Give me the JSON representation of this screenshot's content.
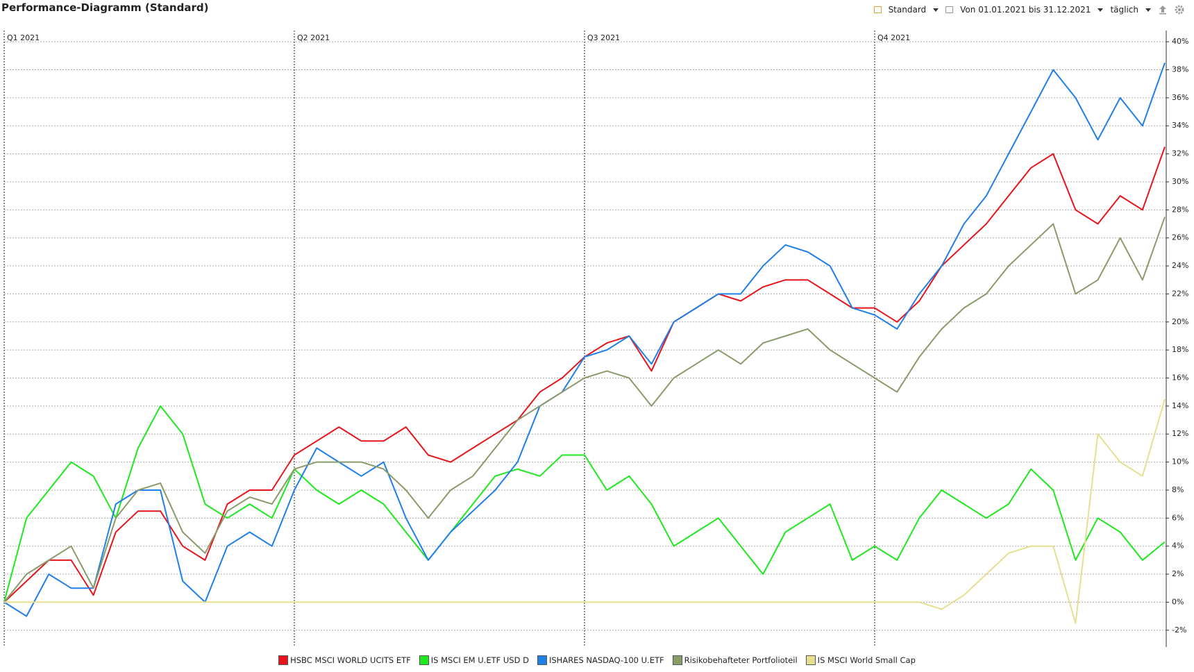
{
  "toolbar": {
    "title": "Performance-Diagramm (Standard)",
    "view": "Standard",
    "period": "Von 01.01.2021 bis 31.12.2021",
    "interval": "täglich"
  },
  "chart_data": {
    "type": "line",
    "categories": [
      "Q1 2021",
      null,
      null,
      null,
      null,
      null,
      null,
      null,
      null,
      null,
      null,
      null,
      null,
      "Q2 2021",
      null,
      null,
      null,
      null,
      null,
      null,
      null,
      null,
      null,
      null,
      null,
      null,
      "Q3 2021",
      null,
      null,
      null,
      null,
      null,
      null,
      null,
      null,
      null,
      null,
      null,
      null,
      "Q4 2021",
      null,
      null,
      null,
      null,
      null,
      null,
      null,
      null,
      null,
      null,
      null,
      null,
      null
    ],
    "series": [
      {
        "name": "HSBC MSCI WORLD UCITS ETF",
        "color": "#e8141c",
        "values": [
          0,
          1.5,
          3,
          3,
          0.5,
          5,
          6.5,
          6.5,
          4,
          3,
          7,
          8,
          8,
          10.5,
          11.5,
          12.5,
          11.5,
          11.5,
          12.5,
          10.5,
          10,
          11,
          12,
          13,
          15,
          16,
          17.5,
          18.5,
          19,
          16.5,
          20,
          21,
          22,
          21.5,
          22.5,
          23,
          23,
          22,
          21,
          21,
          20,
          21.5,
          24,
          25.5,
          27,
          29,
          31,
          32,
          28,
          27,
          29,
          28,
          32.5
        ]
      },
      {
        "name": "IS MSCI EM U.ETF USD D",
        "color": "#1ee81e",
        "values": [
          0,
          6,
          8,
          10,
          9,
          6,
          11,
          14,
          12,
          7,
          6,
          7,
          6,
          9.5,
          8,
          7,
          8,
          7,
          5,
          3,
          5,
          7,
          9,
          9.5,
          9,
          10.5,
          10.5,
          8,
          9,
          7,
          4,
          5,
          6,
          4,
          2,
          5,
          6,
          7,
          3,
          4,
          3,
          6,
          8,
          7,
          6,
          7,
          9.5,
          8,
          3,
          6,
          5,
          3,
          4.3
        ]
      },
      {
        "name": "ISHARES NASDAQ-100 U.ETF",
        "color": "#1f7fe8",
        "values": [
          0,
          -1,
          2,
          1,
          1,
          7,
          8,
          8,
          1.5,
          0,
          4,
          5,
          4,
          8,
          11,
          10,
          9,
          10,
          6,
          3,
          5,
          6.5,
          8,
          10,
          14,
          15,
          17.5,
          18,
          19,
          17,
          20,
          21,
          22,
          22,
          24,
          25.5,
          25,
          24,
          21,
          20.5,
          19.5,
          22,
          24,
          27,
          29,
          32,
          35,
          38,
          36,
          33,
          36,
          34,
          38.5
        ]
      },
      {
        "name": "Risikobehafteter Portfolioteil",
        "color": "#8a9a6a",
        "values": [
          0,
          2,
          3,
          4,
          1,
          6,
          8,
          8.5,
          5,
          3.5,
          6.5,
          7.5,
          7,
          9.5,
          10,
          10,
          10,
          9.5,
          8,
          6,
          8,
          9,
          11,
          13,
          14,
          15,
          16,
          16.5,
          16,
          14,
          16,
          17,
          18,
          17,
          18.5,
          19,
          19.5,
          18,
          17,
          16,
          15,
          17.5,
          19.5,
          21,
          22,
          24,
          25.5,
          27,
          22,
          23,
          26,
          23,
          27.5
        ]
      },
      {
        "name": "IS MSCI World Small Cap",
        "color": "#e6df8f",
        "values": [
          0,
          0,
          0,
          0,
          0,
          0,
          0,
          0,
          0,
          0,
          0,
          0,
          0,
          0,
          0,
          0,
          0,
          0,
          0,
          0,
          0,
          0,
          0,
          0,
          0,
          0,
          0,
          0,
          0,
          0,
          0,
          0,
          0,
          0,
          0,
          0,
          0,
          0,
          0,
          0,
          0,
          0,
          -0.5,
          0.5,
          2,
          3.5,
          4,
          4,
          -1.5,
          12,
          10,
          9,
          14.5
        ]
      }
    ],
    "ylim": [
      -3.2,
      40.8
    ],
    "yticks": [
      {
        "value": -2,
        "label": "-2%"
      },
      {
        "value": 0,
        "label": "0%"
      },
      {
        "value": 2,
        "label": "2%"
      },
      {
        "value": 4,
        "label": "4%"
      },
      {
        "value": 6,
        "label": "6%"
      },
      {
        "value": 8,
        "label": "8%"
      },
      {
        "value": 10,
        "label": "10%"
      },
      {
        "value": 12,
        "label": "12%"
      },
      {
        "value": 14,
        "label": "14%"
      },
      {
        "value": 16,
        "label": "16%"
      },
      {
        "value": 18,
        "label": "18%"
      },
      {
        "value": 20,
        "label": "20%"
      },
      {
        "value": 22,
        "label": "22%"
      },
      {
        "value": 24,
        "label": "24%"
      },
      {
        "value": 26,
        "label": "26%"
      },
      {
        "value": 28,
        "label": "28%"
      },
      {
        "value": 30,
        "label": "30%"
      },
      {
        "value": 32,
        "label": "32%"
      },
      {
        "value": 34,
        "label": "34%"
      },
      {
        "value": 36,
        "label": "36%"
      },
      {
        "value": 38,
        "label": "38%"
      },
      {
        "value": 40,
        "label": "40%"
      }
    ],
    "grid": true
  }
}
